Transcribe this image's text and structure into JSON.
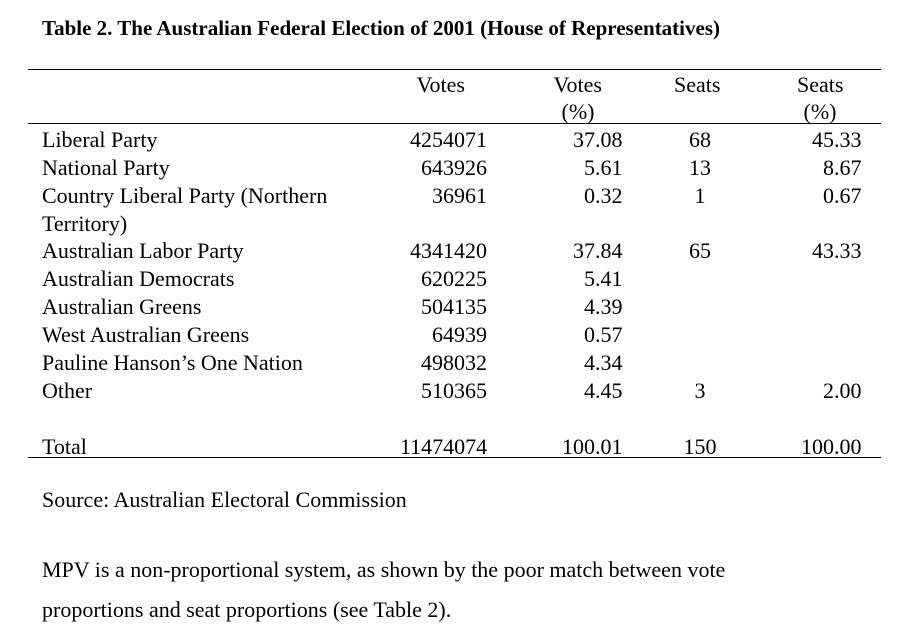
{
  "header": {
    "title": "Table 2. The Australian Federal Election of 2001 (House of Representatives)"
  },
  "table": {
    "columns": [
      {
        "label": "Votes"
      },
      {
        "label": "Votes",
        "unit": "(%)"
      },
      {
        "label": "Seats"
      },
      {
        "label": "Seats",
        "unit": "(%)"
      }
    ],
    "rows": [
      {
        "name": "Liberal Party",
        "cells": [
          "4254071",
          "37.08",
          "68",
          "45.33"
        ]
      },
      {
        "name": "National Party",
        "cells": [
          "643926",
          "5.61",
          "13",
          "8.67"
        ]
      },
      {
        "name": "Country Liberal Party (Northern Territory)",
        "cells": [
          "36961",
          "0.32",
          "1",
          "0.67"
        ]
      },
      {
        "name": "Australian Labor Party",
        "cells": [
          "4341420",
          "37.84",
          "65",
          "43.33"
        ]
      },
      {
        "name": "Australian Democrats",
        "cells": [
          "620225",
          "5.41",
          null,
          null
        ]
      },
      {
        "name": "Australian Greens",
        "cells": [
          "504135",
          "4.39",
          null,
          null
        ]
      },
      {
        "name": "West Australian Greens",
        "cells": [
          "64939",
          "0.57",
          null,
          null
        ]
      },
      {
        "name": "Pauline Hanson’s One Nation",
        "cells": [
          "498032",
          "4.34",
          null,
          null
        ]
      },
      {
        "name": "Other",
        "cells": [
          "510365",
          "4.45",
          "3",
          "2.00"
        ]
      }
    ],
    "total": {
      "name": "Total",
      "cells": [
        "11474074",
        "100.01",
        "150",
        "100.00"
      ]
    }
  },
  "source": "Source: Australian Electoral Commission",
  "paragraph": "MPV is a non-proportional system, as shown by the poor match between vote proportions and seat proportions (see Table 2)."
}
